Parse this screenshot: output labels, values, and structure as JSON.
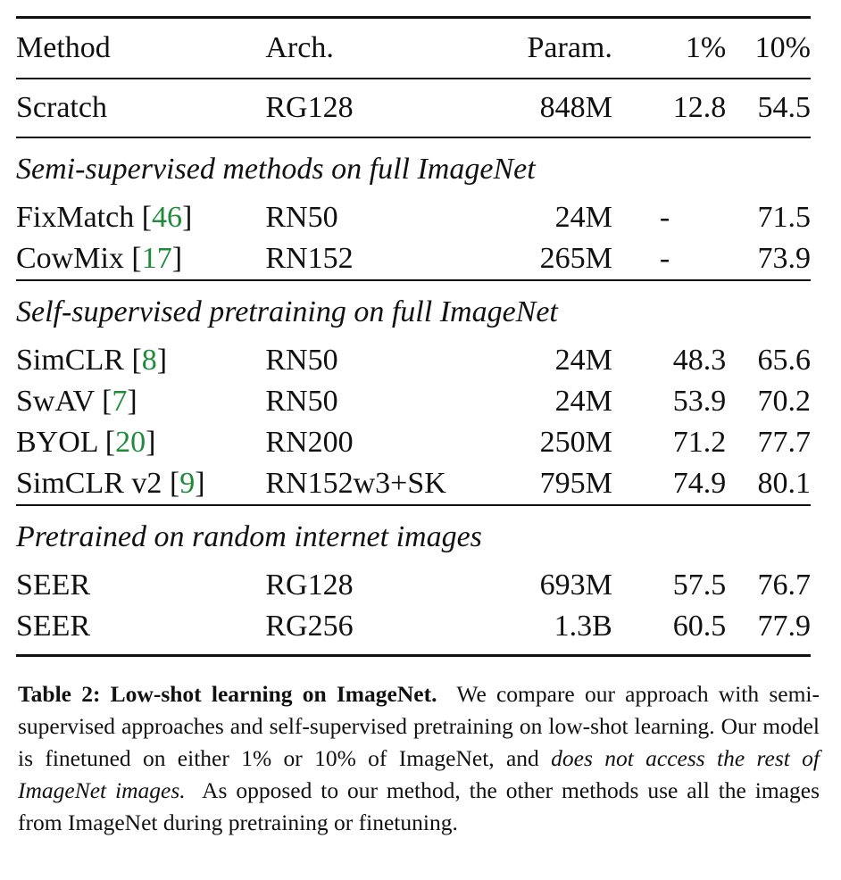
{
  "table": {
    "columns": [
      "Method",
      "Arch.",
      "Param.",
      "1%",
      "10%"
    ],
    "baseline": {
      "method": "Scratch",
      "cite": "",
      "arch": "RG128",
      "param": "848M",
      "p1": "12.8",
      "p10": "54.5"
    },
    "sections": [
      {
        "title": "Semi-supervised methods on full ImageNet",
        "rows": [
          {
            "method": "FixMatch",
            "cite": "46",
            "arch": "RN50",
            "param": "24M",
            "p1": "-",
            "p10": "71.5"
          },
          {
            "method": "CowMix",
            "cite": "17",
            "arch": "RN152",
            "param": "265M",
            "p1": "-",
            "p10": "73.9"
          }
        ]
      },
      {
        "title": "Self-supervised pretraining on full ImageNet",
        "rows": [
          {
            "method": "SimCLR",
            "cite": "8",
            "arch": "RN50",
            "param": "24M",
            "p1": "48.3",
            "p10": "65.6"
          },
          {
            "method": "SwAV",
            "cite": "7",
            "arch": "RN50",
            "param": "24M",
            "p1": "53.9",
            "p10": "70.2"
          },
          {
            "method": "BYOL",
            "cite": "20",
            "arch": "RN200",
            "param": "250M",
            "p1": "71.2",
            "p10": "77.7"
          },
          {
            "method": "SimCLR v2",
            "cite": "9",
            "arch": "RN152w3+SK",
            "param": "795M",
            "p1": "74.9",
            "p10": "80.1"
          }
        ]
      },
      {
        "title": "Pretrained on random internet images",
        "rows": [
          {
            "method": "SEER",
            "cite": "",
            "arch": "RG128",
            "param": "693M",
            "p1": "57.5",
            "p10": "76.7"
          },
          {
            "method": "SEER",
            "cite": "",
            "arch": "RG256",
            "param": "1.3B",
            "p1": "60.5",
            "p10": "77.9"
          }
        ]
      }
    ]
  },
  "caption": {
    "label": "Table 2: Low-shot learning on ImageNet.",
    "part1": "We compare our approach with semi-supervised approaches and self-supervised pretraining on low-shot learning. Our model is finetuned on either 1% or 10% of ImageNet, and",
    "emphasis": "does not access the rest of ImageNet images.",
    "part2": "As opposed to our method, the other methods use all the images from ImageNet during pretraining or finetuning."
  },
  "colors": {
    "citation": "#1f8a3a",
    "text": "#111111"
  }
}
